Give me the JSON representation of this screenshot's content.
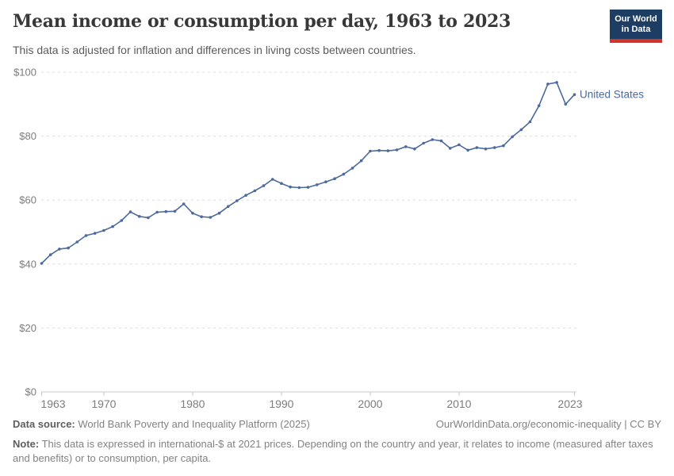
{
  "header": {
    "title": "Mean income or consumption per day, 1963 to 2023",
    "subtitle": "This data is adjusted for inflation and differences in living costs between countries.",
    "logo": {
      "line1": "Our World",
      "line2": "in Data"
    }
  },
  "chart_data": {
    "type": "line",
    "title": "Mean income or consumption per day, 1963 to 2023",
    "xlabel": "",
    "ylabel": "",
    "xlim": [
      1963,
      2023
    ],
    "ylim": [
      0,
      100
    ],
    "xticks": [
      1963,
      1970,
      1980,
      1990,
      2000,
      2010,
      2023
    ],
    "yticks": [
      0,
      20,
      40,
      60,
      80,
      100
    ],
    "ytick_prefix": "$",
    "grid": "horizontal-dashed",
    "legend_position": "end-of-line-label",
    "x": [
      1963,
      1964,
      1965,
      1966,
      1967,
      1968,
      1969,
      1970,
      1971,
      1972,
      1973,
      1974,
      1975,
      1976,
      1977,
      1978,
      1979,
      1980,
      1981,
      1982,
      1983,
      1984,
      1985,
      1986,
      1987,
      1988,
      1989,
      1990,
      1991,
      1992,
      1993,
      1994,
      1995,
      1996,
      1997,
      1998,
      1999,
      2000,
      2001,
      2002,
      2003,
      2004,
      2005,
      2006,
      2007,
      2008,
      2009,
      2010,
      2011,
      2012,
      2013,
      2014,
      2015,
      2016,
      2017,
      2018,
      2019,
      2020,
      2021,
      2022,
      2023
    ],
    "series": [
      {
        "name": "United States",
        "color": "#4c6a9c",
        "values": [
          40.2,
          42.9,
          44.7,
          45.0,
          46.9,
          48.9,
          49.6,
          50.5,
          51.7,
          53.6,
          56.3,
          54.9,
          54.5,
          56.2,
          56.4,
          56.5,
          58.8,
          55.9,
          54.8,
          54.6,
          55.9,
          58.0,
          59.8,
          61.5,
          62.9,
          64.5,
          66.5,
          65.2,
          64.1,
          63.9,
          64.0,
          64.8,
          65.7,
          66.7,
          68.1,
          70.0,
          72.3,
          75.3,
          75.5,
          75.4,
          75.7,
          76.7,
          76.0,
          77.8,
          78.9,
          78.5,
          76.2,
          77.3,
          75.6,
          76.4,
          76.0,
          76.4,
          77.0,
          79.8,
          82.0,
          84.5,
          89.5,
          96.3,
          96.8,
          90.0,
          93.0
        ]
      }
    ]
  },
  "footer": {
    "datasource_label": "Data source:",
    "datasource_text": " World Bank Poverty and Inequality Platform (2025)",
    "link_text": "OurWorldinData.org/economic-inequality | CC BY",
    "note_label": "Note:",
    "note_text": " This data is expressed in international-$ at 2021 prices. Depending on the country and year, it relates to income (measured after taxes and benefits) or to consumption, per capita."
  },
  "colors": {
    "series_line": "#4c6a9c",
    "gridline": "#dcdcdc",
    "axis": "#c9c9c9",
    "tick_label": "#7d7d7d",
    "logo_bg": "#1d3d63",
    "logo_accent": "#d1342b"
  }
}
